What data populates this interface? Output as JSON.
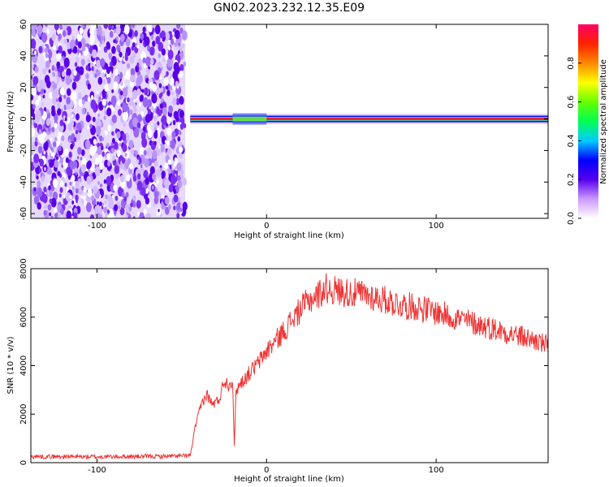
{
  "page": {
    "title": "GN02.2023.232.12.35.E09"
  },
  "chart_data": [
    {
      "type": "heatmap",
      "xlabel": "Height of straight line (km)",
      "ylabel": "Frequency (Hz)",
      "xlim": [
        -139,
        166
      ],
      "ylim": [
        -63,
        60
      ],
      "xticks": [
        -100,
        0,
        100
      ],
      "yticks": [
        60,
        40,
        20,
        0,
        -20,
        -40,
        -60
      ],
      "noise_region_x": [
        -139,
        -48
      ],
      "signal_line": {
        "frequency": 0,
        "x_start": -45,
        "x_end": 166
      },
      "colorbar": {
        "label": "Normalized spectral amplitude",
        "range": [
          0,
          1
        ],
        "ticks": [
          0.0,
          0.2,
          0.4,
          0.6,
          0.8
        ],
        "colors": [
          "#ffffff",
          "#cc99ff",
          "#5500ee",
          "#0000ff",
          "#00ccff",
          "#00ff55",
          "#66ff00",
          "#ffff00",
          "#ff8800",
          "#ff2200",
          "#ff0066"
        ]
      }
    },
    {
      "type": "line",
      "xlabel": "Height of straight line (km)",
      "ylabel": "SNR (10 * v/v)",
      "xlim": [
        -139,
        166
      ],
      "ylim": [
        0,
        8000
      ],
      "xticks": [
        -100,
        0,
        100
      ],
      "yticks": [
        0,
        2000,
        4000,
        6000,
        8000
      ],
      "color": "#ee3333",
      "x": [
        -139,
        -120,
        -100,
        -80,
        -60,
        -48,
        -45,
        -42,
        -38,
        -35,
        -32,
        -28,
        -25,
        -22,
        -20,
        -19,
        -18,
        -15,
        -10,
        -5,
        0,
        5,
        10,
        15,
        20,
        25,
        30,
        35,
        40,
        50,
        60,
        70,
        80,
        90,
        100,
        110,
        120,
        130,
        140,
        150,
        160,
        166
      ],
      "y": [
        250,
        250,
        240,
        250,
        260,
        280,
        300,
        1500,
        2500,
        2800,
        2400,
        2600,
        3400,
        3200,
        3500,
        600,
        3000,
        3300,
        3700,
        4100,
        4600,
        5000,
        5400,
        5900,
        6300,
        6700,
        6900,
        7200,
        7100,
        7000,
        6900,
        6700,
        6500,
        6400,
        6200,
        6000,
        5800,
        5600,
        5400,
        5200,
        5000,
        4800
      ]
    }
  ]
}
